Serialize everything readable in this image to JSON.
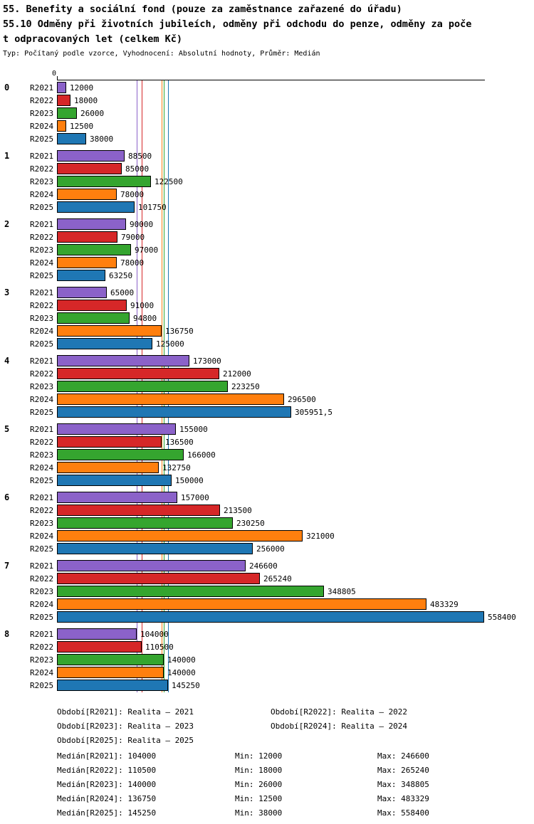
{
  "header": {
    "title_line1": "55. Benefity a sociální fond (pouze za zaměstnance zařazené do úřadu)",
    "title_line2": "55.10 Odměny při životních jubileích, odměny při odchodu do penze, odměny za poče",
    "title_line3": "t odpracovaných let (celkem Kč)",
    "subtitle": "Typ: Počítaný podle vzorce, Vyhodnocení: Absolutní hodnoty, Průměr: Medián"
  },
  "chart_data": {
    "type": "bar",
    "orientation": "horizontal",
    "zero_label": "0",
    "value_axis_min": 0,
    "value_axis_max": 558400,
    "grid": false,
    "legend_position": "bottom",
    "groups": [
      "0",
      "1",
      "2",
      "3",
      "4",
      "5",
      "6",
      "7",
      "8"
    ],
    "series": [
      {
        "name": "R2021",
        "color": "#8B62C9",
        "values": [
          12000,
          88500,
          90000,
          65000,
          173000,
          155000,
          157000,
          246600,
          104000
        ],
        "labels": [
          "12000",
          "88500",
          "90000",
          "65000",
          "173000",
          "155000",
          "157000",
          "246600",
          "104000"
        ],
        "median": 104000
      },
      {
        "name": "R2022",
        "color": "#D62728",
        "values": [
          18000,
          85000,
          79000,
          91000,
          212000,
          136500,
          213500,
          265240,
          110500
        ],
        "labels": [
          "18000",
          "85000",
          "79000",
          "91000",
          "212000",
          "136500",
          "213500",
          "265240",
          "110500"
        ],
        "median": 110500
      },
      {
        "name": "R2023",
        "color": "#35A52F",
        "values": [
          26000,
          122500,
          97000,
          94800,
          223250,
          166000,
          230250,
          348805,
          140000
        ],
        "labels": [
          "26000",
          "122500",
          "97000",
          "94800",
          "223250",
          "166000",
          "230250",
          "348805",
          "140000"
        ],
        "median": 140000
      },
      {
        "name": "R2024",
        "color": "#FF7F0E",
        "values": [
          12500,
          78000,
          78000,
          136750,
          296500,
          132750,
          321000,
          483329,
          140000
        ],
        "labels": [
          "12500",
          "78000",
          "78000",
          "136750",
          "296500",
          "132750",
          "321000",
          "483329",
          "140000"
        ],
        "median": 136750
      },
      {
        "name": "R2025",
        "color": "#1F77B4",
        "values": [
          38000,
          101750,
          63250,
          125000,
          305951.5,
          150000,
          256000,
          558400,
          145250
        ],
        "labels": [
          "38000",
          "101750",
          "63250",
          "125000",
          "305951,5",
          "150000",
          "256000",
          "558400",
          "145250"
        ],
        "median": 145250
      }
    ]
  },
  "legend": {
    "rows": [
      [
        "Období[R2021]: Realita – 2021",
        "Období[R2022]: Realita – 2022"
      ],
      [
        "Období[R2023]: Realita – 2023",
        "Období[R2024]: Realita – 2024"
      ],
      [
        "Období[R2025]: Realita – 2025"
      ]
    ]
  },
  "stats": {
    "rows": [
      {
        "median": "Medián[R2021]: 104000",
        "min": "Min: 12000",
        "max": "Max: 246600"
      },
      {
        "median": "Medián[R2022]: 110500",
        "min": "Min: 18000",
        "max": "Max: 265240"
      },
      {
        "median": "Medián[R2023]: 140000",
        "min": "Min: 26000",
        "max": "Max: 348805"
      },
      {
        "median": "Medián[R2024]: 136750",
        "min": "Min: 12500",
        "max": "Max: 483329"
      },
      {
        "median": "Medián[R2025]: 145250",
        "min": "Min: 38000",
        "max": "Max: 558400"
      }
    ]
  }
}
